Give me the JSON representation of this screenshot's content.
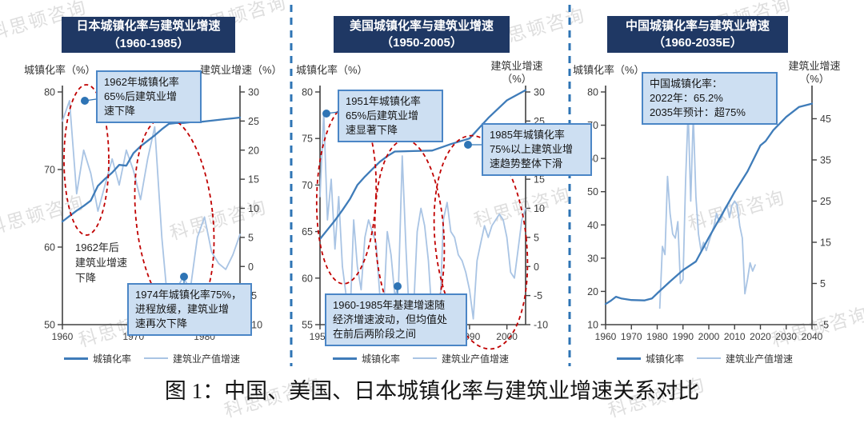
{
  "watermark": "科思顿咨询",
  "caption": "图 1：中国、美国、日本城镇化率与建筑业增速关系对比",
  "colors": {
    "banner_bg": "#1F3864",
    "banner_text": "#FFFFFF",
    "urbanization_line": "#3F7CB9",
    "construction_line": "#A9C4E4",
    "callout_bg": "#CDDFF2",
    "callout_border": "#4B86C6",
    "ellipse_red": "#C00000",
    "separator_blue": "#2E74B5",
    "axis": "#404040",
    "tick_text": "#3D3D3D"
  },
  "chart_data": [
    {
      "id": "japan",
      "type": "line",
      "title": "日本城镇化率与建筑业增速",
      "subtitle": "（1960-1985）",
      "left_axis_label": "城镇化率（%）",
      "right_axis_label": "建筑业增速（%）",
      "x_range": [
        1960,
        1985
      ],
      "left_range": [
        50,
        80
      ],
      "right_range": [
        -10,
        30
      ],
      "x_ticks": [
        1960,
        1970,
        1980
      ],
      "left_ticks": [
        80,
        70,
        60,
        50
      ],
      "right_ticks": [
        30,
        25,
        20,
        15,
        10,
        5,
        0,
        -5,
        -10
      ],
      "legend": [
        "城镇化率",
        "建筑业产值增速"
      ],
      "series": [
        {
          "name": "城镇化率",
          "axis": "left",
          "points": [
            [
              1960,
              63.3
            ],
            [
              1961,
              64.0
            ],
            [
              1962,
              64.7
            ],
            [
              1963,
              65.3
            ],
            [
              1964,
              66.0
            ],
            [
              1965,
              67.9
            ],
            [
              1966,
              68.8
            ],
            [
              1967,
              69.6
            ],
            [
              1968,
              70.6
            ],
            [
              1969,
              70.5
            ],
            [
              1970,
              72.1
            ],
            [
              1971,
              73.0
            ],
            [
              1972,
              73.7
            ],
            [
              1973,
              74.4
            ],
            [
              1974,
              75.2
            ],
            [
              1975,
              75.9
            ],
            [
              1976,
              76.0
            ],
            [
              1977,
              76.0
            ],
            [
              1978,
              76.1
            ],
            [
              1979,
              76.1
            ],
            [
              1980,
              76.2
            ],
            [
              1981,
              76.3
            ],
            [
              1982,
              76.4
            ],
            [
              1983,
              76.5
            ],
            [
              1984,
              76.6
            ],
            [
              1985,
              76.7
            ]
          ]
        },
        {
          "name": "建筑业产值增速",
          "axis": "right",
          "points": [
            [
              1960,
              25
            ],
            [
              1961,
              28.5
            ],
            [
              1962,
              12.5
            ],
            [
              1963,
              20
            ],
            [
              1964,
              16
            ],
            [
              1965,
              9.5
            ],
            [
              1966,
              14
            ],
            [
              1967,
              18.5
            ],
            [
              1968,
              14
            ],
            [
              1969,
              20
            ],
            [
              1970,
              16.5
            ],
            [
              1971,
              11.5
            ],
            [
              1972,
              18.5
            ],
            [
              1973,
              24
            ],
            [
              1974,
              5
            ],
            [
              1975,
              -8.5
            ],
            [
              1976,
              -4
            ],
            [
              1977,
              -1.8
            ],
            [
              1978,
              -4
            ],
            [
              1979,
              5
            ],
            [
              1980,
              8.5
            ],
            [
              1981,
              2.5
            ],
            [
              1982,
              0.5
            ],
            [
              1983,
              -0.5
            ],
            [
              1984,
              2
            ],
            [
              1985,
              5.5
            ]
          ]
        }
      ],
      "annotations": [
        [
          "1962年城镇化率",
          "65%后建筑业增",
          "速下降"
        ],
        [
          "1962年后",
          "建筑业增速",
          "下降"
        ],
        [
          "1974年城镇化率75%，",
          "进程放缓，建筑业增",
          "速再次下降"
        ]
      ]
    },
    {
      "id": "us",
      "type": "line",
      "title": "美国城镇化率与建筑业增速",
      "subtitle": "（1950-2005）",
      "left_axis_label": "城镇化率（%）",
      "right_axis_label": "建筑业增速（%）",
      "x_range": [
        1950,
        2005
      ],
      "left_range": [
        55,
        80
      ],
      "right_range": [
        -10,
        30
      ],
      "x_ticks": [
        1950,
        1960,
        1970,
        1980,
        1990,
        2000
      ],
      "left_ticks": [
        80,
        75,
        70,
        65,
        60,
        55
      ],
      "right_ticks": [
        30,
        25,
        20,
        15,
        10,
        5,
        0,
        -5,
        -10
      ],
      "legend": [
        "城镇化率",
        "建筑业产值增速"
      ],
      "series": [
        {
          "name": "城镇化率",
          "axis": "left",
          "points": [
            [
              1950,
              64.2
            ],
            [
              1952,
              65.2
            ],
            [
              1954,
              66.2
            ],
            [
              1956,
              67.3
            ],
            [
              1958,
              68.5
            ],
            [
              1960,
              70.0
            ],
            [
              1962,
              70.9
            ],
            [
              1964,
              71.7
            ],
            [
              1966,
              72.5
            ],
            [
              1968,
              73.1
            ],
            [
              1970,
              73.6
            ],
            [
              1975,
              73.65
            ],
            [
              1980,
              73.7
            ],
            [
              1985,
              74.4
            ],
            [
              1990,
              75.0
            ],
            [
              1995,
              77.2
            ],
            [
              2000,
              79.1
            ],
            [
              2005,
              80.2
            ]
          ]
        },
        {
          "name": "建筑业产值增速",
          "axis": "right",
          "points": [
            [
              1950,
              12
            ],
            [
              1951,
              26.5
            ],
            [
              1952,
              8
            ],
            [
              1953,
              15
            ],
            [
              1954,
              3
            ],
            [
              1955,
              12
            ],
            [
              1956,
              0
            ],
            [
              1957,
              -5
            ],
            [
              1958,
              -9.5
            ],
            [
              1959,
              8
            ],
            [
              1960,
              0
            ],
            [
              1961,
              -4
            ],
            [
              1962,
              5
            ],
            [
              1963,
              8
            ],
            [
              1964,
              6
            ],
            [
              1965,
              4
            ],
            [
              1966,
              -5
            ],
            [
              1967,
              -8
            ],
            [
              1968,
              6
            ],
            [
              1969,
              2
            ],
            [
              1970,
              -5
            ],
            [
              1971,
              -3.5
            ],
            [
              1972,
              19
            ],
            [
              1973,
              3
            ],
            [
              1974,
              -10
            ],
            [
              1975,
              -8
            ],
            [
              1976,
              6
            ],
            [
              1977,
              10
            ],
            [
              1978,
              7
            ],
            [
              1979,
              1
            ],
            [
              1980,
              -9
            ],
            [
              1981,
              -5
            ],
            [
              1982,
              -9.5
            ],
            [
              1983,
              8
            ],
            [
              1984,
              11
            ],
            [
              1985,
              6
            ],
            [
              1986,
              5
            ],
            [
              1987,
              2
            ],
            [
              1988,
              1
            ],
            [
              1989,
              -1
            ],
            [
              1990,
              -4
            ],
            [
              1991,
              -9
            ],
            [
              1992,
              1
            ],
            [
              1993,
              4
            ],
            [
              1994,
              7
            ],
            [
              1995,
              5
            ],
            [
              1996,
              7
            ],
            [
              1997,
              8
            ],
            [
              1998,
              9
            ],
            [
              1999,
              8
            ],
            [
              2000,
              5
            ],
            [
              2001,
              -1
            ],
            [
              2002,
              -2
            ],
            [
              2003,
              3
            ],
            [
              2004,
              8
            ],
            [
              2005,
              10
            ]
          ]
        }
      ],
      "annotations": [
        [
          "1951年城镇化率",
          "65%后建筑业增",
          "速显著下降"
        ],
        [
          "1985年城镇化率",
          "75%以上建筑业增",
          "速趋势整体下滑"
        ],
        [
          "1960-1985年基建增速随",
          "经济增速波动，但均值处",
          "在前后两阶段之间"
        ]
      ]
    },
    {
      "id": "china",
      "type": "line",
      "title": "中国城镇化率与建筑业增速",
      "subtitle": "（1960-2035E）",
      "left_axis_label": "城镇化率（%）",
      "right_axis_label": "建筑业增速（%）",
      "x_range": [
        1960,
        2040
      ],
      "left_range": [
        10,
        80
      ],
      "right_range": [
        -5,
        51.5
      ],
      "x_ticks": [
        1960,
        1970,
        1980,
        1990,
        2000,
        2010,
        2020,
        2030,
        2040
      ],
      "left_ticks": [
        80,
        70,
        60,
        50,
        40,
        30,
        20,
        10
      ],
      "right_ticks": [
        45,
        35,
        25,
        15,
        5,
        -5
      ],
      "legend": [
        "城镇化率",
        "建筑业产值增速"
      ],
      "series": [
        {
          "name": "城镇化率",
          "axis": "left",
          "points": [
            [
              1960,
              16.2
            ],
            [
              1962,
              17.2
            ],
            [
              1964,
              18.4
            ],
            [
              1966,
              17.9
            ],
            [
              1970,
              17.4
            ],
            [
              1975,
              17.3
            ],
            [
              1978,
              17.9
            ],
            [
              1980,
              19.4
            ],
            [
              1985,
              23.0
            ],
            [
              1990,
              26.4
            ],
            [
              1995,
              29.0
            ],
            [
              2000,
              36.2
            ],
            [
              2005,
              43.0
            ],
            [
              2010,
              49.9
            ],
            [
              2015,
              56.1
            ],
            [
              2020,
              63.9
            ],
            [
              2022,
              65.2
            ],
            [
              2025,
              68.5
            ],
            [
              2030,
              72.5
            ],
            [
              2035,
              75.5
            ],
            [
              2040,
              76.5
            ]
          ]
        },
        {
          "name": "建筑业产值增速",
          "axis": "right",
          "points": [
            [
              1981,
              -1
            ],
            [
              1982,
              14
            ],
            [
              1983,
              12
            ],
            [
              1984,
              31
            ],
            [
              1985,
              22
            ],
            [
              1986,
              17
            ],
            [
              1987,
              16
            ],
            [
              1988,
              20
            ],
            [
              1989,
              5
            ],
            [
              1990,
              6
            ],
            [
              1991,
              30
            ],
            [
              1992,
              47
            ],
            [
              1993,
              25
            ],
            [
              1994,
              46
            ],
            [
              1995,
              26
            ],
            [
              1996,
              17
            ],
            [
              1997,
              13
            ],
            [
              1998,
              15
            ],
            [
              1999,
              13
            ],
            [
              2000,
              15
            ],
            [
              2001,
              17
            ],
            [
              2002,
              19
            ],
            [
              2003,
              22
            ],
            [
              2004,
              20
            ],
            [
              2005,
              21
            ],
            [
              2006,
              23
            ],
            [
              2007,
              24
            ],
            [
              2008,
              21
            ],
            [
              2009,
              24
            ],
            [
              2010,
              25
            ],
            [
              2011,
              24
            ],
            [
              2012,
              19
            ],
            [
              2013,
              16
            ],
            [
              2014,
              2.5
            ],
            [
              2015,
              6
            ],
            [
              2016,
              10
            ],
            [
              2017,
              8
            ],
            [
              2018,
              9.5
            ]
          ]
        }
      ],
      "annotations": [
        [
          "中国城镇化率：",
          "2022年：65.2%",
          "2035年预计：超75%"
        ]
      ]
    }
  ]
}
